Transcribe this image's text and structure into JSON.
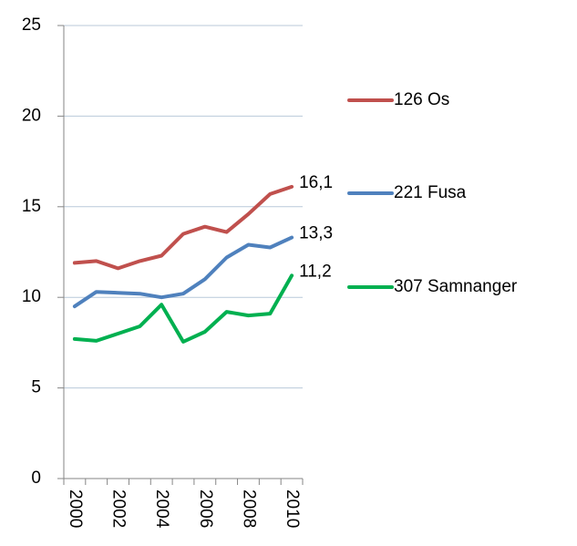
{
  "chart_data": {
    "type": "line",
    "categories": [
      "2000",
      null,
      "2002",
      null,
      "2004",
      null,
      "2006",
      null,
      "2008",
      null,
      "2010"
    ],
    "series": [
      {
        "name": "126 Os",
        "color": "#c0504d",
        "label_color": "#953735",
        "values": [
          11.9,
          12.0,
          11.6,
          12.0,
          12.3,
          13.5,
          13.9,
          13.6,
          14.6,
          15.7,
          16.1
        ],
        "value_labels": [
          null,
          null,
          null,
          null,
          null,
          null,
          null,
          null,
          null,
          null,
          "16,1"
        ]
      },
      {
        "name": "221 Fusa",
        "color": "#4f81bd",
        "label_color": "#1f497d",
        "values": [
          9.5,
          10.3,
          10.25,
          10.2,
          10.0,
          10.2,
          11.0,
          12.2,
          12.9,
          12.75,
          13.3
        ],
        "value_labels": [
          null,
          null,
          null,
          null,
          null,
          null,
          null,
          null,
          null,
          null,
          "13,3"
        ]
      },
      {
        "name": "307 Samnanger",
        "color": "#00b050",
        "label_color": "#4f6228",
        "values": [
          7.7,
          7.6,
          8.0,
          8.4,
          9.6,
          7.55,
          8.1,
          9.2,
          9.0,
          9.1,
          11.2
        ],
        "value_labels": [
          null,
          null,
          null,
          null,
          null,
          null,
          null,
          null,
          null,
          null,
          "11,2"
        ]
      }
    ],
    "ylim": [
      0,
      25
    ],
    "yticks": [
      0,
      5,
      10,
      15,
      20,
      25
    ],
    "grid": true,
    "legend": "right"
  }
}
